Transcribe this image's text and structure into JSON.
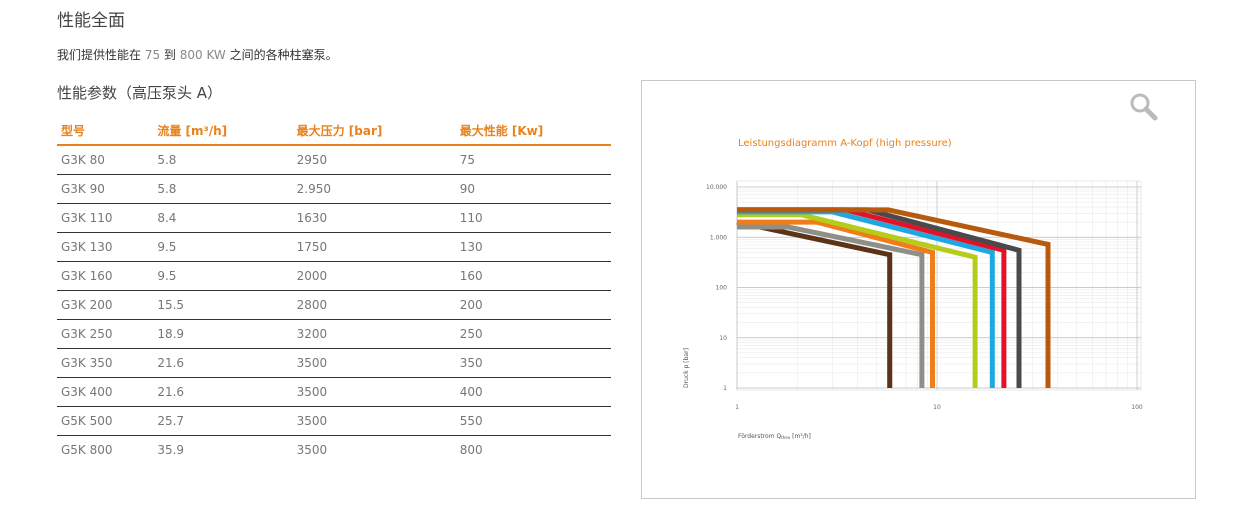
{
  "header": {
    "title": "性能全面",
    "intro": [
      "我们提供性能在 ",
      "75",
      " 到 ",
      "800 KW",
      " 之间的各种柱塞泵。"
    ],
    "subtitle": "性能参数（高压泵头 A）"
  },
  "table": {
    "columns": [
      "型号",
      "流量 [m³/h]",
      "最大压力 [bar]",
      "最大性能 [Kw]"
    ],
    "rows": [
      [
        "G3K 80",
        "5.8",
        "2950",
        "75"
      ],
      [
        "G3K 90",
        "5.8",
        "2.950",
        "90"
      ],
      [
        "G3K 110",
        "8.4",
        "1630",
        "110"
      ],
      [
        "G3K 130",
        "9.5",
        "1750",
        "130"
      ],
      [
        "G3K 160",
        "9.5",
        "2000",
        "160"
      ],
      [
        "G3K 200",
        "15.5",
        "2800",
        "200"
      ],
      [
        "G3K 250",
        "18.9",
        "3200",
        "250"
      ],
      [
        "G3K 350",
        "21.6",
        "3500",
        "350"
      ],
      [
        "G3K 400",
        "21.6",
        "3500",
        "400"
      ],
      [
        "G5K 500",
        "25.7",
        "3500",
        "550"
      ],
      [
        "G5K 800",
        "35.9",
        "3500",
        "800"
      ]
    ]
  },
  "chart_data": {
    "type": "line",
    "title": "Leistungsdiagramm A-Kopf (high pressure)",
    "xlabel": [
      "Förderstrom Q",
      "theo",
      " [m³/h]"
    ],
    "ylabel": "Druck p [bar]",
    "xscale": "log",
    "yscale": "log",
    "grid": true,
    "xlim": [
      1,
      100
    ],
    "ylim": [
      1,
      10000
    ],
    "xticks": [
      1,
      10,
      100
    ],
    "yticks": [
      {
        "value": 10000,
        "label": "10.000"
      },
      {
        "value": 1000,
        "label": "1.000"
      },
      100,
      10,
      1
    ],
    "series": [
      {
        "color": "#5c3317",
        "x": [
          1,
          5.8,
          5.8
        ],
        "y": [
          2000,
          450,
          1
        ]
      },
      {
        "color": "#8f8f8a",
        "x": [
          1,
          1.8,
          8.4,
          8.4
        ],
        "y": [
          1600,
          1600,
          450,
          1
        ]
      },
      {
        "color": "#f07d1a",
        "x": [
          1,
          2.5,
          9.5,
          9.5
        ],
        "y": [
          2000,
          2000,
          500,
          1
        ]
      },
      {
        "color": "#b5cc18",
        "x": [
          1,
          2.1,
          15.5,
          15.5
        ],
        "y": [
          2800,
          2800,
          400,
          1
        ]
      },
      {
        "color": "#1fa8e0",
        "x": [
          1,
          3,
          18.9,
          18.9
        ],
        "y": [
          3200,
          3200,
          500,
          1
        ]
      },
      {
        "color": "#e3122b",
        "x": [
          1,
          3.5,
          21.6,
          21.6
        ],
        "y": [
          3500,
          3500,
          550,
          1
        ]
      },
      {
        "color": "#4a4a4a",
        "x": [
          1,
          4.5,
          25.7,
          25.7
        ],
        "y": [
          3500,
          3500,
          550,
          1
        ]
      },
      {
        "color": "#b85a0e",
        "x": [
          1,
          5.7,
          35.9,
          35.9
        ],
        "y": [
          3500,
          3500,
          720,
          1
        ]
      }
    ]
  }
}
